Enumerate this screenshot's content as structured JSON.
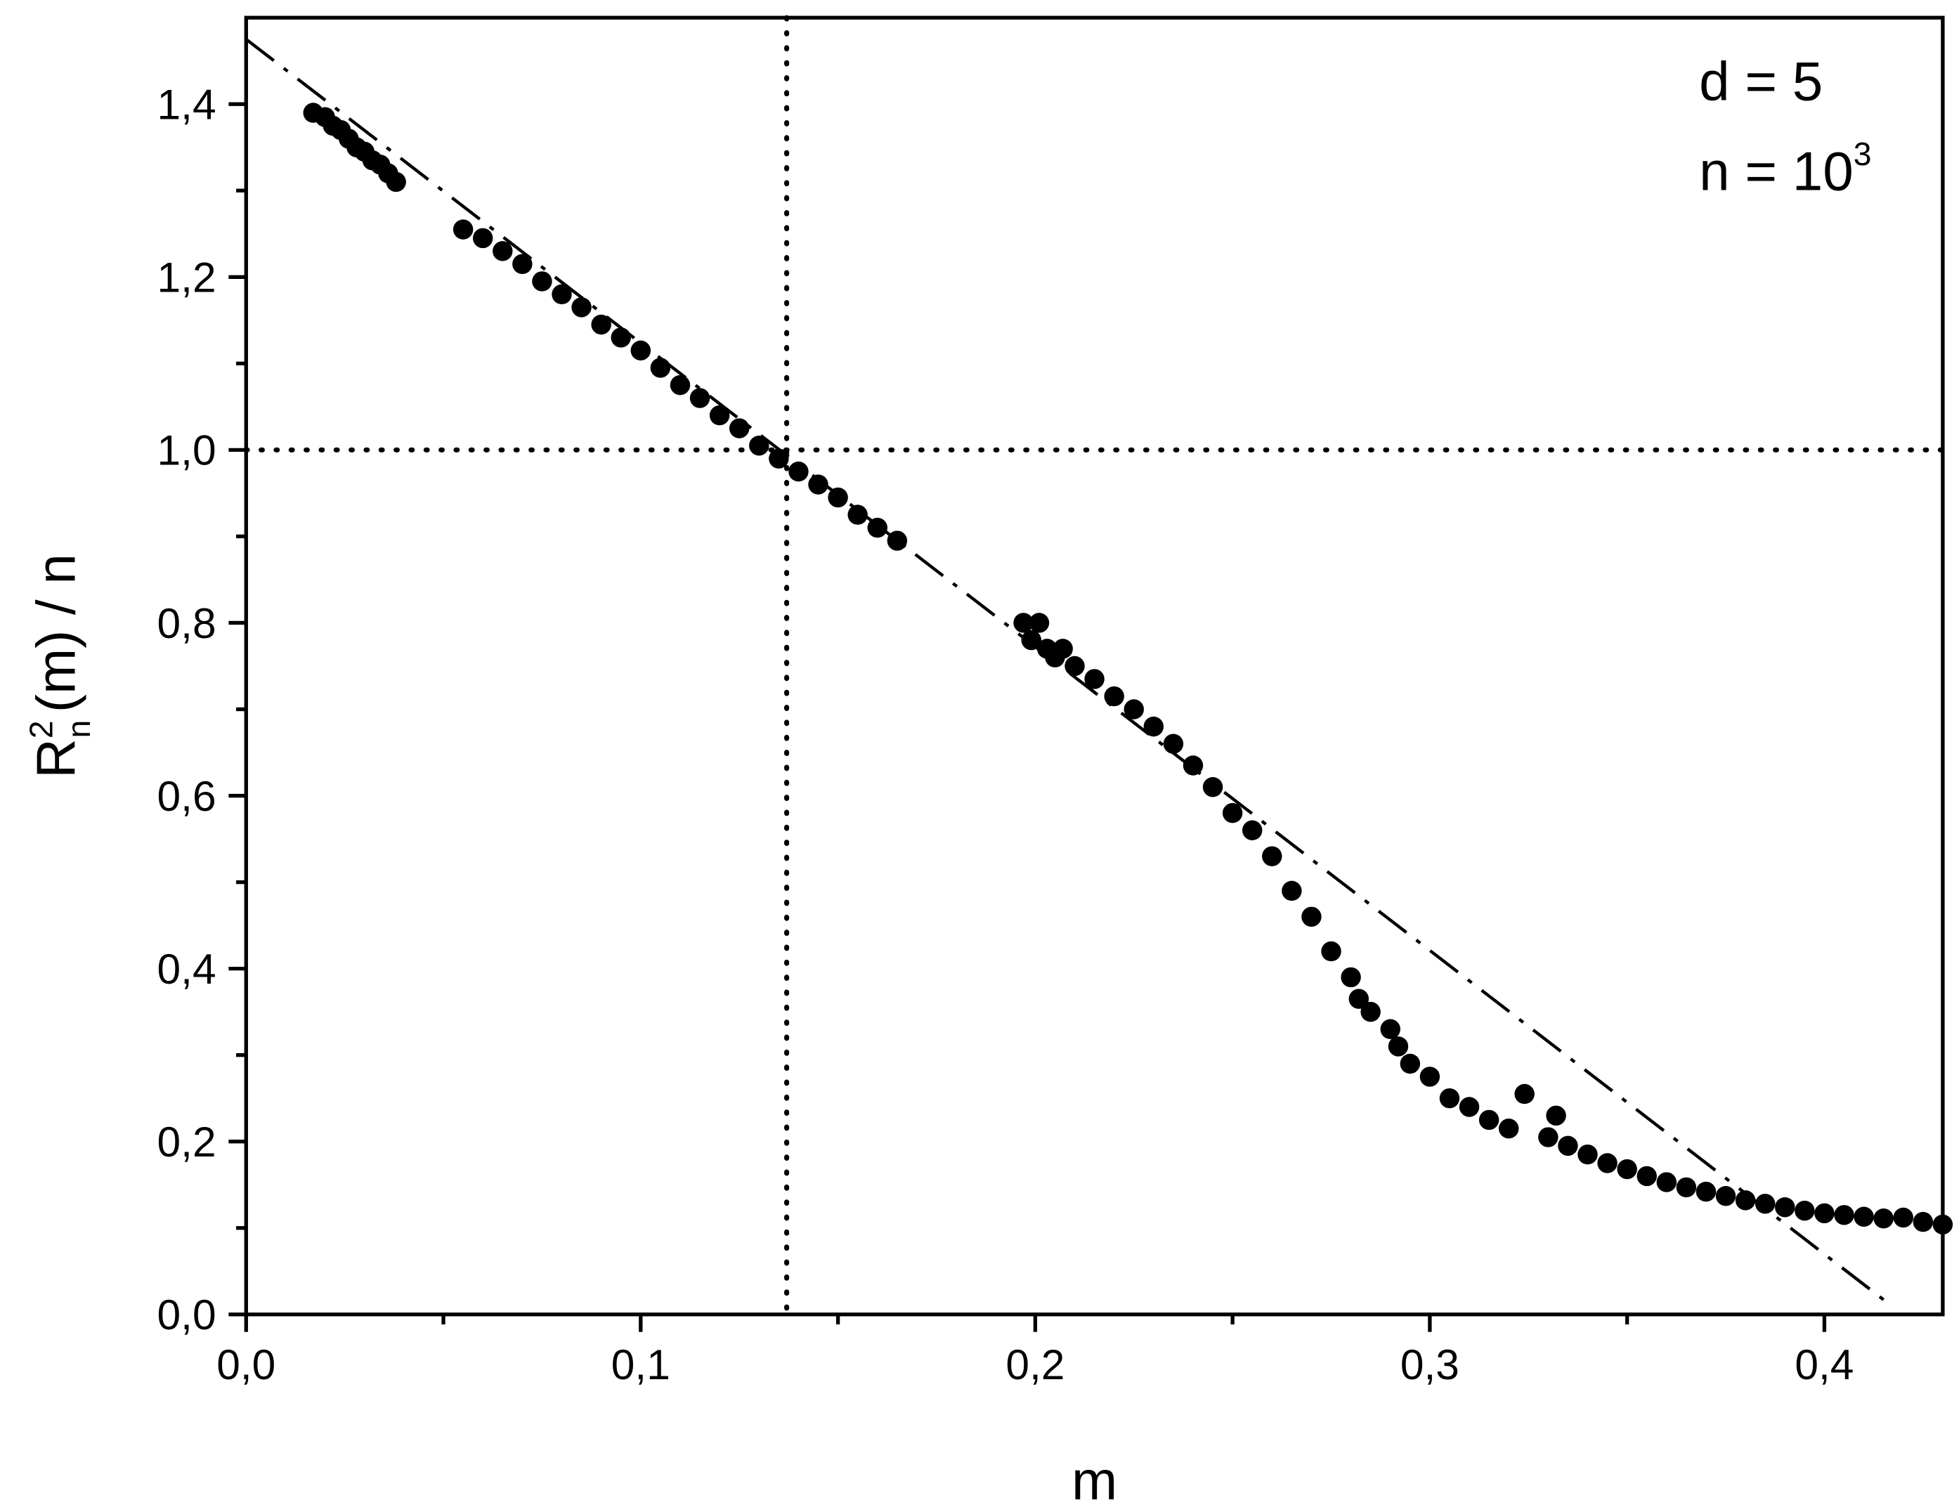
{
  "chart_data": {
    "type": "scatter",
    "x_label": "m",
    "y_label": {
      "base": "R",
      "sup": "2",
      "sub": "n",
      "rest": "(m) / n"
    },
    "annotations": [
      "d = 5",
      {
        "base": "n = 10",
        "sup": "3"
      }
    ],
    "color": "#000000",
    "xlim": [
      0,
      0.43
    ],
    "ylim": [
      0,
      1.5
    ],
    "xticks": [
      {
        "value": 0,
        "label": "0,0"
      },
      {
        "value": 0.1,
        "label": "0,1"
      },
      {
        "value": 0.2,
        "label": "0,2"
      },
      {
        "value": 0.3,
        "label": "0,3"
      },
      {
        "value": 0.4,
        "label": "0,4"
      }
    ],
    "xminor_ticks": [
      0.05,
      0.15,
      0.25,
      0.35
    ],
    "yticks": [
      {
        "value": 0,
        "label": "0,0"
      },
      {
        "value": 0.2,
        "label": "0,2"
      },
      {
        "value": 0.4,
        "label": "0,4"
      },
      {
        "value": 0.6,
        "label": "0,6"
      },
      {
        "value": 0.8,
        "label": "0,8"
      },
      {
        "value": 1.0,
        "label": "1,0"
      },
      {
        "value": 1.2,
        "label": "1,2"
      },
      {
        "value": 1.4,
        "label": "1,4"
      }
    ],
    "yminor_ticks": [
      0.1,
      0.3,
      0.5,
      0.7,
      0.9,
      1.1,
      1.3
    ],
    "reference_lines": {
      "vline": 0.137,
      "hline": 1.0,
      "fit": {
        "x": [
          0,
          0.417
        ],
        "y": [
          1.475,
          0.01
        ]
      }
    },
    "x": [
      0.017,
      0.02,
      0.022,
      0.024,
      0.026,
      0.028,
      0.03,
      0.032,
      0.034,
      0.036,
      0.038,
      0.055,
      0.06,
      0.065,
      0.07,
      0.075,
      0.08,
      0.085,
      0.09,
      0.095,
      0.1,
      0.105,
      0.11,
      0.115,
      0.12,
      0.125,
      0.13,
      0.135,
      0.14,
      0.145,
      0.15,
      0.155,
      0.16,
      0.165,
      0.197,
      0.201,
      0.199,
      0.203,
      0.205,
      0.207,
      0.21,
      0.215,
      0.22,
      0.225,
      0.23,
      0.235,
      0.24,
      0.245,
      0.25,
      0.255,
      0.26,
      0.265,
      0.27,
      0.275,
      0.28,
      0.282,
      0.285,
      0.29,
      0.292,
      0.295,
      0.3,
      0.305,
      0.31,
      0.315,
      0.32,
      0.324,
      0.33,
      0.332,
      0.335,
      0.34,
      0.345,
      0.35,
      0.355,
      0.36,
      0.365,
      0.37,
      0.375,
      0.38,
      0.385,
      0.39,
      0.395,
      0.4,
      0.405,
      0.41,
      0.415,
      0.42,
      0.425,
      0.43
    ],
    "values": [
      1.39,
      1.385,
      1.375,
      1.37,
      1.36,
      1.35,
      1.345,
      1.335,
      1.33,
      1.32,
      1.31,
      1.255,
      1.245,
      1.23,
      1.215,
      1.195,
      1.18,
      1.165,
      1.145,
      1.13,
      1.115,
      1.095,
      1.075,
      1.06,
      1.04,
      1.025,
      1.005,
      0.99,
      0.975,
      0.96,
      0.945,
      0.925,
      0.91,
      0.895,
      0.8,
      0.8,
      0.78,
      0.77,
      0.76,
      0.77,
      0.75,
      0.735,
      0.715,
      0.7,
      0.68,
      0.66,
      0.635,
      0.61,
      0.58,
      0.56,
      0.53,
      0.49,
      0.46,
      0.42,
      0.39,
      0.365,
      0.35,
      0.33,
      0.31,
      0.29,
      0.275,
      0.25,
      0.24,
      0.225,
      0.215,
      0.255,
      0.205,
      0.23,
      0.195,
      0.185,
      0.175,
      0.168,
      0.16,
      0.153,
      0.147,
      0.142,
      0.137,
      0.132,
      0.128,
      0.124,
      0.12,
      0.117,
      0.115,
      0.113,
      0.111,
      0.112,
      0.107,
      0.104
    ]
  }
}
